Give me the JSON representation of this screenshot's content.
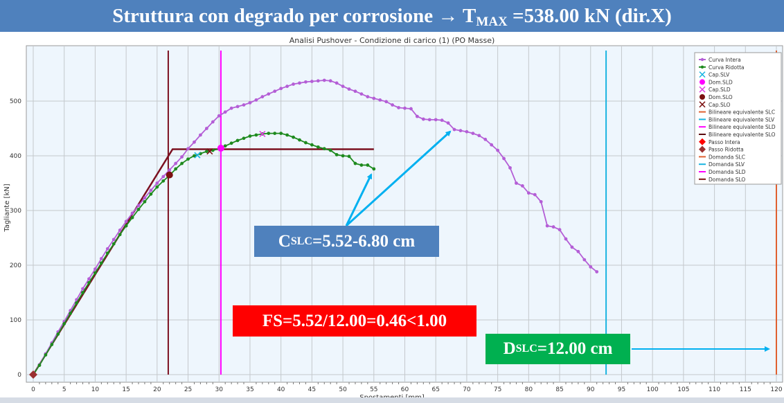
{
  "banner": {
    "main": "Struttura con degrado per corrosione → T",
    "sub": "MAX",
    "rest": " =538.00 kN (dir.X)"
  },
  "annotations": {
    "cslc": {
      "main": "C",
      "sub": "SLC",
      "rest": " =5.52-6.80 cm"
    },
    "fs": "FS=5.52/12.00=0.46<1.00",
    "dslc": {
      "main": "D",
      "sub": "SLC",
      "rest": " =12.00 cm"
    },
    "arrow_color": "#00b0f0"
  },
  "chart_data": {
    "type": "line",
    "title": "Analisi Pushover - Condizione di carico (1) (PO Masse)",
    "xlabel": "Spostamenti [mm]",
    "ylabel": "Tagliante [kN]",
    "xlim": [
      0,
      120
    ],
    "ylim": [
      0,
      540
    ],
    "xticks": [
      0,
      5,
      10,
      15,
      20,
      25,
      30,
      35,
      40,
      45,
      50,
      55,
      60,
      65,
      70,
      75,
      80,
      85,
      90,
      95,
      100,
      105,
      110,
      115,
      120
    ],
    "yticks": [
      0,
      100,
      200,
      300,
      400,
      500
    ],
    "grid": true,
    "legend_position": "top-right",
    "series": [
      {
        "name": "Curva Intera",
        "color": "#b45ed6",
        "x": [
          0,
          1,
          2,
          3,
          4,
          5,
          6,
          7,
          8,
          9,
          10,
          11,
          12,
          13,
          14,
          15,
          16,
          17,
          18,
          19,
          20,
          21,
          22,
          23,
          24,
          25,
          26,
          27,
          28,
          29,
          30,
          31,
          32,
          33,
          34,
          35,
          36,
          37,
          38,
          39,
          40,
          41,
          42,
          43,
          44,
          45,
          46,
          47,
          48,
          49,
          50,
          51,
          52,
          53,
          54,
          55,
          56,
          57,
          58,
          59,
          60,
          61,
          62,
          63,
          64,
          65,
          66,
          67,
          68,
          69,
          70,
          71,
          72,
          73,
          74,
          75,
          76,
          77,
          78,
          79,
          80,
          81,
          82,
          83,
          84,
          85,
          86,
          87,
          88,
          89,
          90,
          91
        ],
        "y": [
          0,
          18,
          38,
          58,
          78,
          97,
          117,
          137,
          157,
          175,
          193,
          212,
          230,
          247,
          264,
          280,
          295,
          309,
          323,
          337,
          350,
          362,
          374,
          386,
          398,
          413,
          425,
          438,
          450,
          462,
          473,
          480,
          487,
          490,
          493,
          497,
          502,
          508,
          513,
          518,
          523,
          527,
          531,
          533,
          535,
          536,
          537,
          538,
          537,
          533,
          527,
          522,
          518,
          513,
          508,
          505,
          502,
          499,
          493,
          488,
          487,
          486,
          472,
          467,
          466,
          466,
          465,
          460,
          448,
          446,
          444,
          441,
          437,
          430,
          420,
          410,
          395,
          378,
          350,
          345,
          332,
          329,
          316,
          272,
          270,
          265,
          248,
          233,
          225,
          210,
          197,
          188
        ]
      },
      {
        "name": "Curva Ridotta",
        "color": "#1e8a1e",
        "x": [
          0,
          1,
          2,
          3,
          4,
          5,
          6,
          7,
          8,
          9,
          10,
          11,
          12,
          13,
          14,
          15,
          16,
          17,
          18,
          19,
          20,
          21,
          22,
          23,
          24,
          25,
          26,
          27,
          28,
          29,
          30,
          31,
          32,
          33,
          34,
          35,
          36,
          37,
          38,
          39,
          40,
          41,
          42,
          43,
          44,
          45,
          46,
          47,
          48,
          49,
          50,
          51,
          52,
          53,
          54,
          55
        ],
        "y": [
          0,
          17,
          36,
          55,
          74,
          93,
          112,
          131,
          150,
          168,
          186,
          204,
          222,
          239,
          256,
          272,
          287,
          302,
          316,
          330,
          343,
          354,
          364,
          376,
          386,
          394,
          400,
          404,
          408,
          410,
          413,
          418,
          423,
          428,
          432,
          436,
          438,
          440,
          441,
          441,
          441,
          438,
          434,
          429,
          424,
          420,
          416,
          413,
          410,
          402,
          400,
          399,
          386,
          383,
          383,
          376
        ]
      }
    ],
    "bilinear_SLO": {
      "name": "Bilineare equivalente SLO",
      "color": "#7b1020",
      "x": [
        0,
        22.5,
        55
      ],
      "y": [
        0,
        412,
        412
      ]
    },
    "demand_lines": [
      {
        "name": "Domanda SLO",
        "color": "#7b1020",
        "x": 21.8
      },
      {
        "name": "Domanda SLD",
        "color": "#ff00ff",
        "x": 30.3
      },
      {
        "name": "Domanda SLV",
        "color": "#19b4e0",
        "x": 92.5
      },
      {
        "name": "Domanda SLC",
        "color": "#e06030",
        "x": 120
      }
    ],
    "markers": [
      {
        "name": "Dom.SLO",
        "shape": "circle",
        "color": "#7b1010",
        "x": 22,
        "y": 365
      },
      {
        "name": "Dom.SLD",
        "shape": "circle",
        "color": "#ff00ff",
        "x": 30.3,
        "y": 414
      },
      {
        "name": "Cap.SLV",
        "shape": "x",
        "color": "#19b4e0",
        "x": 26.5,
        "y": 401
      },
      {
        "name": "Cap.SLO",
        "shape": "x",
        "color": "#7b1010",
        "x": 28.5,
        "y": 408
      },
      {
        "name": "Cap.SLD",
        "shape": "x",
        "color": "#e040e0",
        "x": 37,
        "y": 440
      },
      {
        "name": "Passo Ridotta",
        "shape": "diamond",
        "color": "#9b3030",
        "x": 0,
        "y": 0
      }
    ],
    "legend": [
      {
        "label": "Curva Intera",
        "color": "#b45ed6",
        "kind": "linedot"
      },
      {
        "label": "Curva Ridotta",
        "color": "#1e8a1e",
        "kind": "linedot"
      },
      {
        "label": "Cap.SLV",
        "color": "#19b4e0",
        "kind": "x"
      },
      {
        "label": "Dom.SLD",
        "color": "#ff00ff",
        "kind": "circle"
      },
      {
        "label": "Cap.SLD",
        "color": "#e040e0",
        "kind": "x"
      },
      {
        "label": "Dom.SLO",
        "color": "#7b1010",
        "kind": "circle"
      },
      {
        "label": "Cap.SLO",
        "color": "#7b1010",
        "kind": "x"
      },
      {
        "label": "Bilineare equivalente SLC",
        "color": "#e06030",
        "kind": "line"
      },
      {
        "label": "Bilineare equivalente SLV",
        "color": "#19b4e0",
        "kind": "line"
      },
      {
        "label": "Bilineare equivalente SLD",
        "color": "#ff00ff",
        "kind": "line"
      },
      {
        "label": "Bilineare equivalente SLO",
        "color": "#5a0a10",
        "kind": "line"
      },
      {
        "label": "Passo Intera",
        "color": "#ff0000",
        "kind": "diamond"
      },
      {
        "label": "Passo Ridotta",
        "color": "#9b3030",
        "kind": "diamond"
      },
      {
        "label": "Domanda SLC",
        "color": "#e06030",
        "kind": "line"
      },
      {
        "label": "Domanda SLV",
        "color": "#19b4e0",
        "kind": "line"
      },
      {
        "label": "Domanda SLD",
        "color": "#ff00ff",
        "kind": "line"
      },
      {
        "label": "Domanda SLO",
        "color": "#7b1010",
        "kind": "line"
      }
    ]
  }
}
